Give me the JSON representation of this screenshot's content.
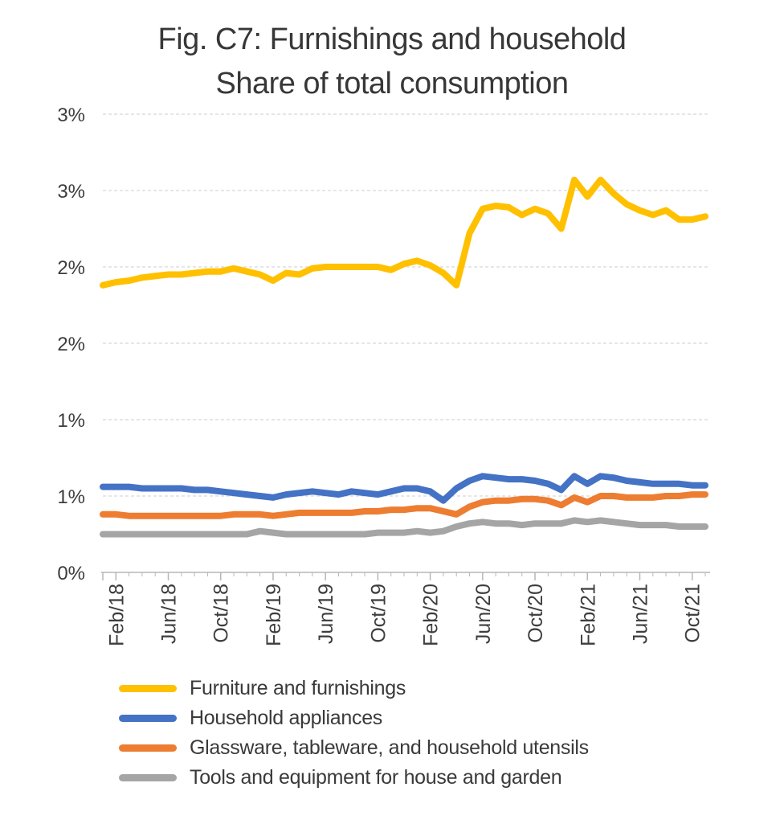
{
  "title": {
    "line1": "Fig. C7: Furnishings and household",
    "line2": "Share of total consumption"
  },
  "chart_data": {
    "type": "line",
    "title": "Fig. C7: Furnishings and household Share of total consumption",
    "x_unit": "month",
    "x": [
      "Jan/18",
      "Feb/18",
      "Mar/18",
      "Apr/18",
      "May/18",
      "Jun/18",
      "Jul/18",
      "Aug/18",
      "Sep/18",
      "Oct/18",
      "Nov/18",
      "Dec/18",
      "Jan/19",
      "Feb/19",
      "Mar/19",
      "Apr/19",
      "May/19",
      "Jun/19",
      "Jul/19",
      "Aug/19",
      "Sep/19",
      "Oct/19",
      "Nov/19",
      "Dec/19",
      "Jan/20",
      "Feb/20",
      "Mar/20",
      "Apr/20",
      "May/20",
      "Jun/20",
      "Jul/20",
      "Aug/20",
      "Sep/20",
      "Oct/20",
      "Nov/20",
      "Dec/20",
      "Jan/21",
      "Feb/21",
      "Mar/21",
      "Apr/21",
      "May/21",
      "Jun/21",
      "Jul/21",
      "Aug/21",
      "Sep/21",
      "Oct/21",
      "Nov/21"
    ],
    "x_tick_labels": [
      "Feb/18",
      "Jun/18",
      "Oct/18",
      "Feb/19",
      "Jun/19",
      "Oct/19",
      "Feb/20",
      "Jun/20",
      "Oct/20",
      "Feb/21",
      "Jun/21",
      "Oct/21"
    ],
    "y_axis": {
      "min": 0,
      "max": 3,
      "unit": "%",
      "tick_values": [
        0,
        0.5,
        1,
        1.5,
        2,
        2.5,
        3
      ],
      "tick_labels": [
        "0%",
        "1%",
        "1%",
        "2%",
        "2%",
        "3%",
        "3%"
      ]
    },
    "grid": "horizontal-dashed",
    "legend_position": "bottom-left",
    "series": [
      {
        "name": "Furniture and furnishings",
        "color": "#FFC000",
        "values": [
          1.88,
          1.9,
          1.91,
          1.93,
          1.94,
          1.95,
          1.95,
          1.96,
          1.97,
          1.97,
          1.99,
          1.97,
          1.95,
          1.91,
          1.96,
          1.95,
          1.99,
          2.0,
          2.0,
          2.0,
          2.0,
          2.0,
          1.98,
          2.02,
          2.04,
          2.01,
          1.96,
          1.88,
          2.22,
          2.38,
          2.4,
          2.39,
          2.34,
          2.38,
          2.35,
          2.25,
          2.57,
          2.46,
          2.57,
          2.48,
          2.41,
          2.37,
          2.34,
          2.37,
          2.31,
          2.31,
          2.33
        ]
      },
      {
        "name": "Household appliances",
        "color": "#4472C4",
        "values": [
          0.56,
          0.56,
          0.56,
          0.55,
          0.55,
          0.55,
          0.55,
          0.54,
          0.54,
          0.53,
          0.52,
          0.51,
          0.5,
          0.49,
          0.51,
          0.52,
          0.53,
          0.52,
          0.51,
          0.53,
          0.52,
          0.51,
          0.53,
          0.55,
          0.55,
          0.53,
          0.47,
          0.55,
          0.6,
          0.63,
          0.62,
          0.61,
          0.61,
          0.6,
          0.58,
          0.54,
          0.63,
          0.58,
          0.63,
          0.62,
          0.6,
          0.59,
          0.58,
          0.58,
          0.58,
          0.57,
          0.57
        ]
      },
      {
        "name": "Glassware, tableware, and household utensils",
        "color": "#ED7D31",
        "values": [
          0.38,
          0.38,
          0.37,
          0.37,
          0.37,
          0.37,
          0.37,
          0.37,
          0.37,
          0.37,
          0.38,
          0.38,
          0.38,
          0.37,
          0.38,
          0.39,
          0.39,
          0.39,
          0.39,
          0.39,
          0.4,
          0.4,
          0.41,
          0.41,
          0.42,
          0.42,
          0.4,
          0.38,
          0.43,
          0.46,
          0.47,
          0.47,
          0.48,
          0.48,
          0.47,
          0.44,
          0.49,
          0.46,
          0.5,
          0.5,
          0.49,
          0.49,
          0.49,
          0.5,
          0.5,
          0.51,
          0.51
        ]
      },
      {
        "name": "Tools and equipment for house and garden",
        "color": "#A5A5A5",
        "values": [
          0.25,
          0.25,
          0.25,
          0.25,
          0.25,
          0.25,
          0.25,
          0.25,
          0.25,
          0.25,
          0.25,
          0.25,
          0.27,
          0.26,
          0.25,
          0.25,
          0.25,
          0.25,
          0.25,
          0.25,
          0.25,
          0.26,
          0.26,
          0.26,
          0.27,
          0.26,
          0.27,
          0.3,
          0.32,
          0.33,
          0.32,
          0.32,
          0.31,
          0.32,
          0.32,
          0.32,
          0.34,
          0.33,
          0.34,
          0.33,
          0.32,
          0.31,
          0.31,
          0.31,
          0.3,
          0.3,
          0.3
        ]
      }
    ],
    "style_colors": {
      "gridline": "#d8d8d8",
      "axis": "#b7b7b7",
      "tick_text": "#3d3d3d",
      "title_text": "#373737"
    }
  }
}
